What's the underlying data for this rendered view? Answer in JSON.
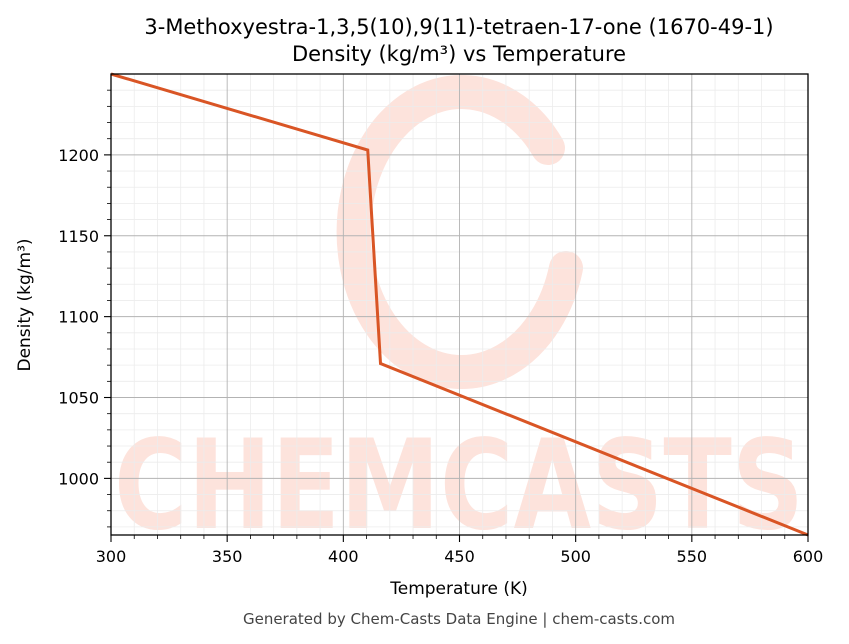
{
  "chart_data": {
    "type": "line",
    "title": "3-Methoxyestra-1,3,5(10),9(11)-tetraen-17-one (1670-49-1)",
    "subtitle": "Density (kg/m³) vs Temperature",
    "xlabel": "Temperature (K)",
    "ylabel": "Density (kg/m³)",
    "xlim": [
      300,
      600
    ],
    "ylim": [
      965,
      1250
    ],
    "xticks": [
      300,
      350,
      400,
      450,
      500,
      550,
      600
    ],
    "yticks": [
      1000,
      1050,
      1100,
      1150,
      1200
    ],
    "grid": true,
    "series": [
      {
        "color": "#d95525",
        "x": [
          300,
          410.5,
          416,
          600
        ],
        "y": [
          1250,
          1203,
          1071,
          965
        ]
      }
    ]
  },
  "watermark": {
    "text": "CHEMCASTS",
    "color": "#fde3dc"
  },
  "footer": "Generated by Chem-Casts Data Engine | chem-casts.com"
}
